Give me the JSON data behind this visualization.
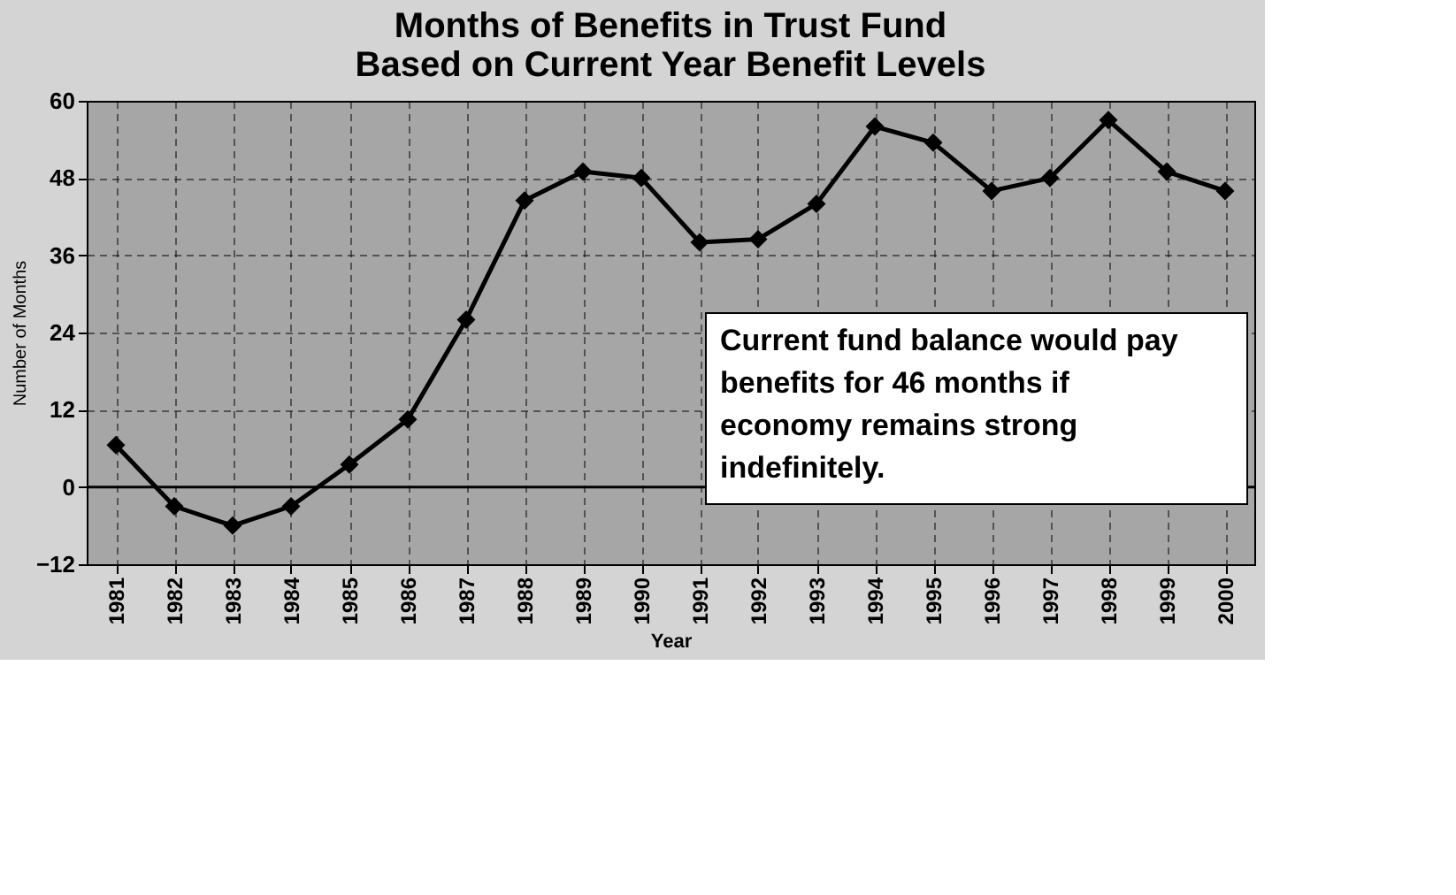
{
  "chart_data": {
    "type": "line",
    "title": "Months of Benefits in Trust Fund\nBased on Current Year Benefit Levels",
    "xlabel": "Year",
    "ylabel": "Number of Months",
    "categories": [
      "1981",
      "1982",
      "1983",
      "1984",
      "1985",
      "1986",
      "1987",
      "1988",
      "1989",
      "1990",
      "1991",
      "1992",
      "1993",
      "1994",
      "1995",
      "1996",
      "1997",
      "1998",
      "1999",
      "2000"
    ],
    "series": [
      {
        "color": "#000000",
        "values": [
          6.5,
          -3,
          -6,
          -3,
          3.5,
          10.5,
          26,
          44.5,
          49,
          48,
          38,
          38.5,
          44,
          56,
          53.5,
          46,
          48,
          57,
          49,
          46
        ]
      }
    ],
    "ylim": [
      -12,
      60
    ],
    "yticks": [
      -12,
      0,
      12,
      24,
      36,
      48,
      60
    ],
    "grid": true,
    "marker": "diamond",
    "line_style": "solid",
    "legend": false,
    "ref_lines": [
      {
        "axis": "y",
        "value": 0,
        "color": "#000000"
      }
    ],
    "annotations": [
      "Current fund balance would pay benefits for 46 months if economy remains strong indefinitely."
    ]
  }
}
